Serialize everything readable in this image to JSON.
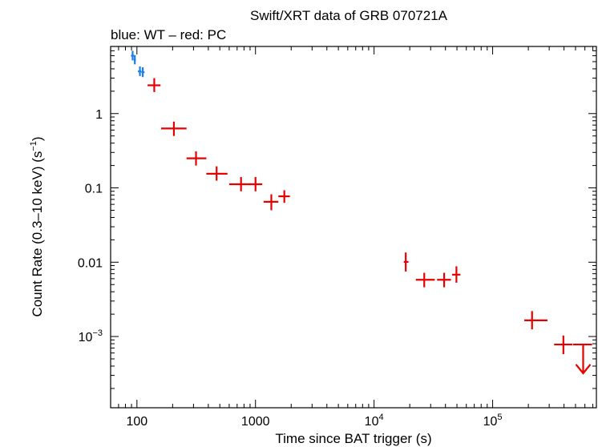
{
  "chart_data": {
    "type": "scatter",
    "title": "Swift/XRT data of GRB 070721A",
    "subtitle": "blue: WT – red: PC",
    "xlabel": "Time since BAT trigger (s)",
    "ylabel": "Count Rate (0.3–10 keV) (s",
    "ylabel_sup": "−1",
    "ylabel_end": ")",
    "x_scale": "log",
    "y_scale": "log",
    "xlim": [
      60,
      750000
    ],
    "ylim": [
      0.00011,
      8
    ],
    "grid": false,
    "x_ticks": [
      {
        "value": 100,
        "label": "100"
      },
      {
        "value": 1000,
        "label": "1000"
      },
      {
        "value": 10000,
        "label": "10",
        "sup": "4"
      },
      {
        "value": 100000,
        "label": "10",
        "sup": "5"
      }
    ],
    "y_ticks": [
      {
        "value": 1,
        "label": "1"
      },
      {
        "value": 0.1,
        "label": "0.1"
      },
      {
        "value": 0.01,
        "label": "0.01"
      },
      {
        "value": 0.001,
        "label": "10",
        "sup": "−3"
      }
    ],
    "series": [
      {
        "color": "#1a7fe6",
        "points": [
          {
            "x": 92,
            "xlo": 89,
            "xhi": 95,
            "y": 6.0,
            "ylo": 5.2,
            "yhi": 7.0
          },
          {
            "x": 96,
            "xlo": 94,
            "xhi": 98,
            "y": 5.3,
            "ylo": 4.6,
            "yhi": 6.1
          },
          {
            "x": 106,
            "xlo": 102,
            "xhi": 109,
            "y": 3.7,
            "ylo": 3.2,
            "yhi": 4.3
          },
          {
            "x": 112,
            "xlo": 109,
            "xhi": 116,
            "y": 3.6,
            "ylo": 3.1,
            "yhi": 4.2
          }
        ]
      },
      {
        "color": "#e60000",
        "points": [
          {
            "x": 140,
            "xlo": 123,
            "xhi": 158,
            "y": 2.4,
            "ylo": 1.95,
            "yhi": 3.0
          },
          {
            "x": 205,
            "xlo": 160,
            "xhi": 262,
            "y": 0.63,
            "ylo": 0.5,
            "yhi": 0.78
          },
          {
            "x": 315,
            "xlo": 262,
            "xhi": 385,
            "y": 0.25,
            "ylo": 0.2,
            "yhi": 0.31
          },
          {
            "x": 470,
            "xlo": 385,
            "xhi": 580,
            "y": 0.155,
            "ylo": 0.125,
            "yhi": 0.195
          },
          {
            "x": 755,
            "xlo": 600,
            "xhi": 910,
            "y": 0.112,
            "ylo": 0.09,
            "yhi": 0.14
          },
          {
            "x": 1000,
            "xlo": 890,
            "xhi": 1140,
            "y": 0.112,
            "ylo": 0.09,
            "yhi": 0.14
          },
          {
            "x": 1360,
            "xlo": 1170,
            "xhi": 1560,
            "y": 0.065,
            "ylo": 0.05,
            "yhi": 0.082
          },
          {
            "x": 1750,
            "xlo": 1560,
            "xhi": 1950,
            "y": 0.077,
            "ylo": 0.063,
            "yhi": 0.093
          },
          {
            "x": 18500,
            "xlo": 17800,
            "xhi": 19500,
            "y": 0.0101,
            "ylo": 0.0075,
            "yhi": 0.0135
          },
          {
            "x": 26500,
            "xlo": 22500,
            "xhi": 32500,
            "y": 0.0058,
            "ylo": 0.0046,
            "yhi": 0.0072
          },
          {
            "x": 39000,
            "xlo": 34000,
            "xhi": 44500,
            "y": 0.0058,
            "ylo": 0.0046,
            "yhi": 0.0072
          },
          {
            "x": 49500,
            "xlo": 45500,
            "xhi": 53500,
            "y": 0.0068,
            "ylo": 0.0053,
            "yhi": 0.0088
          },
          {
            "x": 215000,
            "xlo": 185000,
            "xhi": 290000,
            "y": 0.00165,
            "ylo": 0.00125,
            "yhi": 0.0022
          },
          {
            "x": 395000,
            "xlo": 330000,
            "xhi": 470000,
            "y": 0.00078,
            "ylo": 0.00058,
            "yhi": 0.00103
          }
        ]
      },
      {
        "color": "#e60000",
        "upper_limits": [
          {
            "x": 580000,
            "xlo": 475000,
            "xhi": 690000,
            "y": 0.00078,
            "y_arrow_end": 0.00032
          }
        ]
      }
    ]
  }
}
